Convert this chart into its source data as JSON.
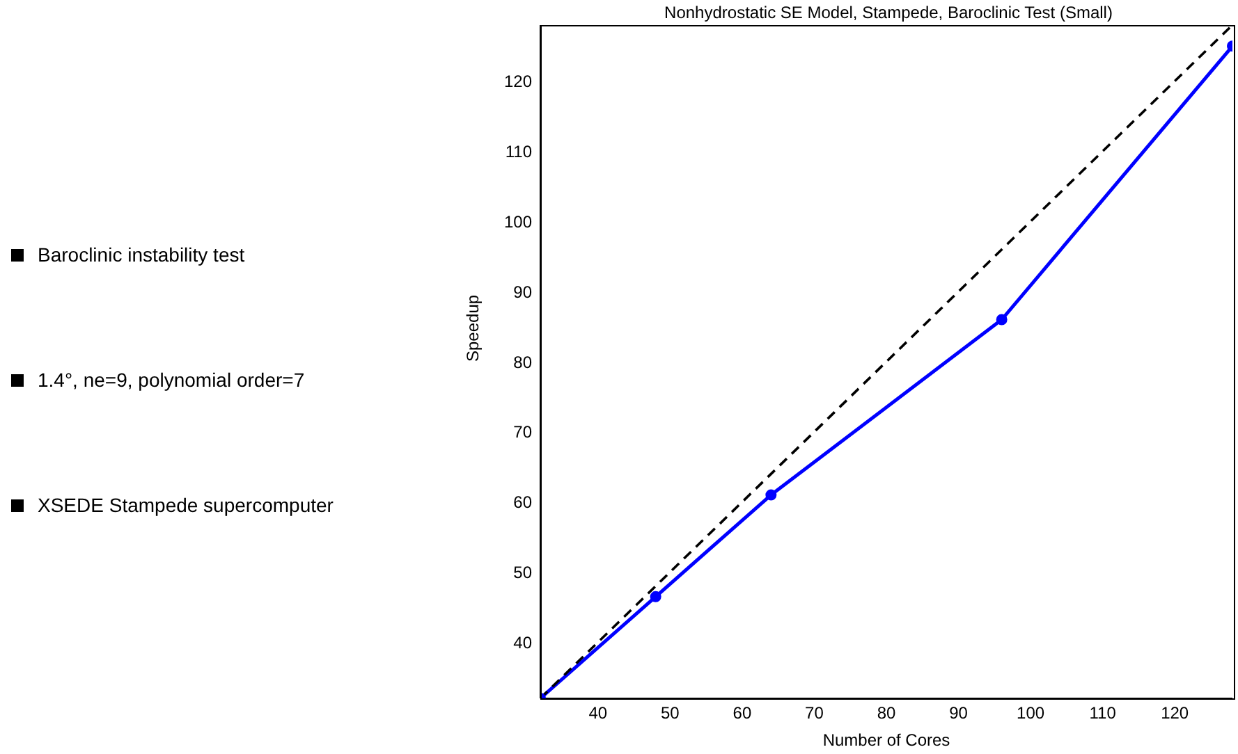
{
  "chart_data": {
    "type": "line",
    "title": "Nonhydrostatic SE Model, Stampede, Baroclinic Test (Small)",
    "xlabel": "Number of Cores",
    "ylabel": "Speedup",
    "annotations": [
      "Baroclinic instability test",
      "1.4°, ne=9, polynomial order=7",
      "XSEDE Stampede supercomputer"
    ],
    "series": [
      {
        "x": [
          32,
          48,
          64,
          96,
          128
        ],
        "values": [
          32,
          46.5,
          61,
          86,
          125
        ],
        "color": "#0000ff",
        "marker": "circle",
        "line_style": "solid"
      },
      {
        "x": [
          32,
          128
        ],
        "values": [
          32,
          128
        ],
        "color": "#000000",
        "marker": "none",
        "line_style": "dashed"
      }
    ],
    "xlim": [
      32,
      128
    ],
    "xticks": [
      40,
      50,
      60,
      70,
      80,
      90,
      100,
      110,
      120
    ],
    "ylim": [
      32,
      128
    ],
    "yticks": [
      40,
      50,
      60,
      70,
      80,
      90,
      100,
      110,
      120
    ],
    "grid": false,
    "legend": false
  }
}
